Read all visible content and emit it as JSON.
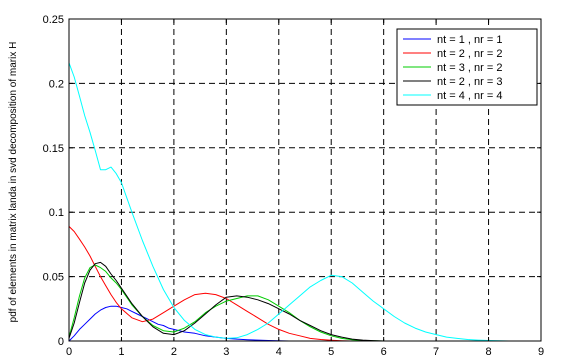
{
  "chart_data": {
    "type": "line",
    "title": "",
    "xlabel": "",
    "ylabel": "pdf of elements in matrix landa in svd decomposition of marix H",
    "xlim": [
      0,
      9
    ],
    "ylim": [
      0,
      0.25
    ],
    "xticks": [
      "0",
      "1",
      "2",
      "3",
      "4",
      "5",
      "6",
      "7",
      "8",
      "9"
    ],
    "yticks": [
      "0",
      "0.05",
      "0.1",
      "0.15",
      "0.2",
      "0.25"
    ],
    "grid": true,
    "grid_style": "dashed",
    "legend_position": "top-right",
    "series": [
      {
        "name": "nt = 1 , nr = 1",
        "color": "#0000ff",
        "x": [
          0,
          0.1,
          0.2,
          0.3,
          0.4,
          0.5,
          0.6,
          0.7,
          0.8,
          0.9,
          1.0,
          1.1,
          1.2,
          1.3,
          1.4,
          1.5,
          1.6,
          1.7,
          1.8,
          1.9,
          2.0,
          2.2,
          2.4,
          2.6,
          2.8,
          3.0,
          3.2,
          3.4,
          3.6,
          3.8,
          4.0,
          4.2
        ],
        "y": [
          0,
          0.004,
          0.009,
          0.013,
          0.017,
          0.021,
          0.024,
          0.026,
          0.027,
          0.027,
          0.026,
          0.025,
          0.023,
          0.021,
          0.019,
          0.017,
          0.015,
          0.013,
          0.012,
          0.01,
          0.009,
          0.007,
          0.006,
          0.004,
          0.003,
          0.002,
          0.0015,
          0.001,
          0.0007,
          0.0004,
          0.0002,
          0
        ]
      },
      {
        "name": "nt = 2 , nr = 2",
        "color": "#ff0000",
        "x": [
          0,
          0.1,
          0.2,
          0.3,
          0.4,
          0.5,
          0.6,
          0.7,
          0.8,
          0.9,
          1.0,
          1.2,
          1.4,
          1.6,
          1.8,
          2.0,
          2.2,
          2.4,
          2.6,
          2.8,
          3.0,
          3.2,
          3.4,
          3.6,
          3.8,
          4.0,
          4.2,
          4.4,
          4.6,
          4.8,
          5.0,
          5.2,
          5.4
        ],
        "y": [
          0.089,
          0.085,
          0.079,
          0.073,
          0.066,
          0.058,
          0.05,
          0.043,
          0.036,
          0.03,
          0.025,
          0.018,
          0.015,
          0.017,
          0.022,
          0.027,
          0.032,
          0.036,
          0.037,
          0.036,
          0.033,
          0.028,
          0.023,
          0.018,
          0.013,
          0.009,
          0.006,
          0.004,
          0.002,
          0.0012,
          0.0006,
          0.0002,
          0
        ]
      },
      {
        "name": "nt = 3 , nr = 2",
        "color": "#00cc00",
        "x": [
          0,
          0.1,
          0.2,
          0.3,
          0.4,
          0.5,
          0.6,
          0.7,
          0.8,
          0.9,
          1.0,
          1.1,
          1.2,
          1.4,
          1.6,
          1.8,
          2.0,
          2.2,
          2.4,
          2.6,
          2.8,
          3.0,
          3.2,
          3.4,
          3.6,
          3.8,
          4.0,
          4.2,
          4.4,
          4.6,
          4.8,
          5.0,
          5.2,
          5.4,
          5.6,
          5.8,
          6.0
        ],
        "y": [
          0.003,
          0.018,
          0.035,
          0.049,
          0.057,
          0.059,
          0.057,
          0.054,
          0.049,
          0.045,
          0.04,
          0.034,
          0.028,
          0.019,
          0.012,
          0.008,
          0.007,
          0.01,
          0.015,
          0.022,
          0.027,
          0.031,
          0.033,
          0.035,
          0.035,
          0.032,
          0.027,
          0.022,
          0.016,
          0.011,
          0.007,
          0.004,
          0.002,
          0.001,
          0.0005,
          0.0002,
          0
        ]
      },
      {
        "name": "nt = 2 , nr = 3",
        "color": "#000000",
        "x": [
          0,
          0.1,
          0.2,
          0.3,
          0.4,
          0.5,
          0.6,
          0.7,
          0.8,
          0.9,
          1.0,
          1.1,
          1.2,
          1.4,
          1.6,
          1.8,
          2.0,
          2.2,
          2.4,
          2.6,
          2.8,
          3.0,
          3.2,
          3.4,
          3.6,
          3.8,
          4.0,
          4.2,
          4.4,
          4.6,
          4.8,
          5.0,
          5.2,
          5.4,
          5.6,
          5.8,
          6.0
        ],
        "y": [
          0.002,
          0.014,
          0.03,
          0.045,
          0.055,
          0.06,
          0.061,
          0.058,
          0.052,
          0.047,
          0.041,
          0.035,
          0.029,
          0.019,
          0.011,
          0.006,
          0.005,
          0.008,
          0.014,
          0.021,
          0.028,
          0.034,
          0.035,
          0.034,
          0.032,
          0.029,
          0.025,
          0.021,
          0.016,
          0.012,
          0.008,
          0.005,
          0.003,
          0.0015,
          0.0007,
          0.0003,
          0
        ]
      },
      {
        "name": "nt = 4 , nr = 4",
        "color": "#00ffff",
        "x": [
          0,
          0.1,
          0.2,
          0.3,
          0.4,
          0.5,
          0.6,
          0.7,
          0.8,
          0.9,
          1.0,
          1.2,
          1.4,
          1.6,
          1.8,
          2.0,
          2.2,
          2.4,
          2.6,
          2.8,
          3.0,
          3.2,
          3.4,
          3.6,
          3.8,
          4.0,
          4.2,
          4.4,
          4.6,
          4.8,
          5.0,
          5.2,
          5.4,
          5.6,
          5.8,
          6.0,
          6.2,
          6.4,
          6.6,
          6.8,
          7.0,
          7.2,
          7.4,
          7.6,
          7.8,
          8.0,
          8.2,
          8.4
        ],
        "y": [
          0.216,
          0.205,
          0.19,
          0.175,
          0.162,
          0.148,
          0.133,
          0.133,
          0.135,
          0.13,
          0.123,
          0.1,
          0.078,
          0.058,
          0.04,
          0.026,
          0.016,
          0.009,
          0.005,
          0.003,
          0.002,
          0.0025,
          0.005,
          0.009,
          0.014,
          0.021,
          0.028,
          0.035,
          0.042,
          0.047,
          0.051,
          0.05,
          0.045,
          0.038,
          0.031,
          0.025,
          0.019,
          0.014,
          0.01,
          0.007,
          0.005,
          0.003,
          0.002,
          0.0012,
          0.0007,
          0.0004,
          0.0002,
          0
        ]
      }
    ]
  }
}
